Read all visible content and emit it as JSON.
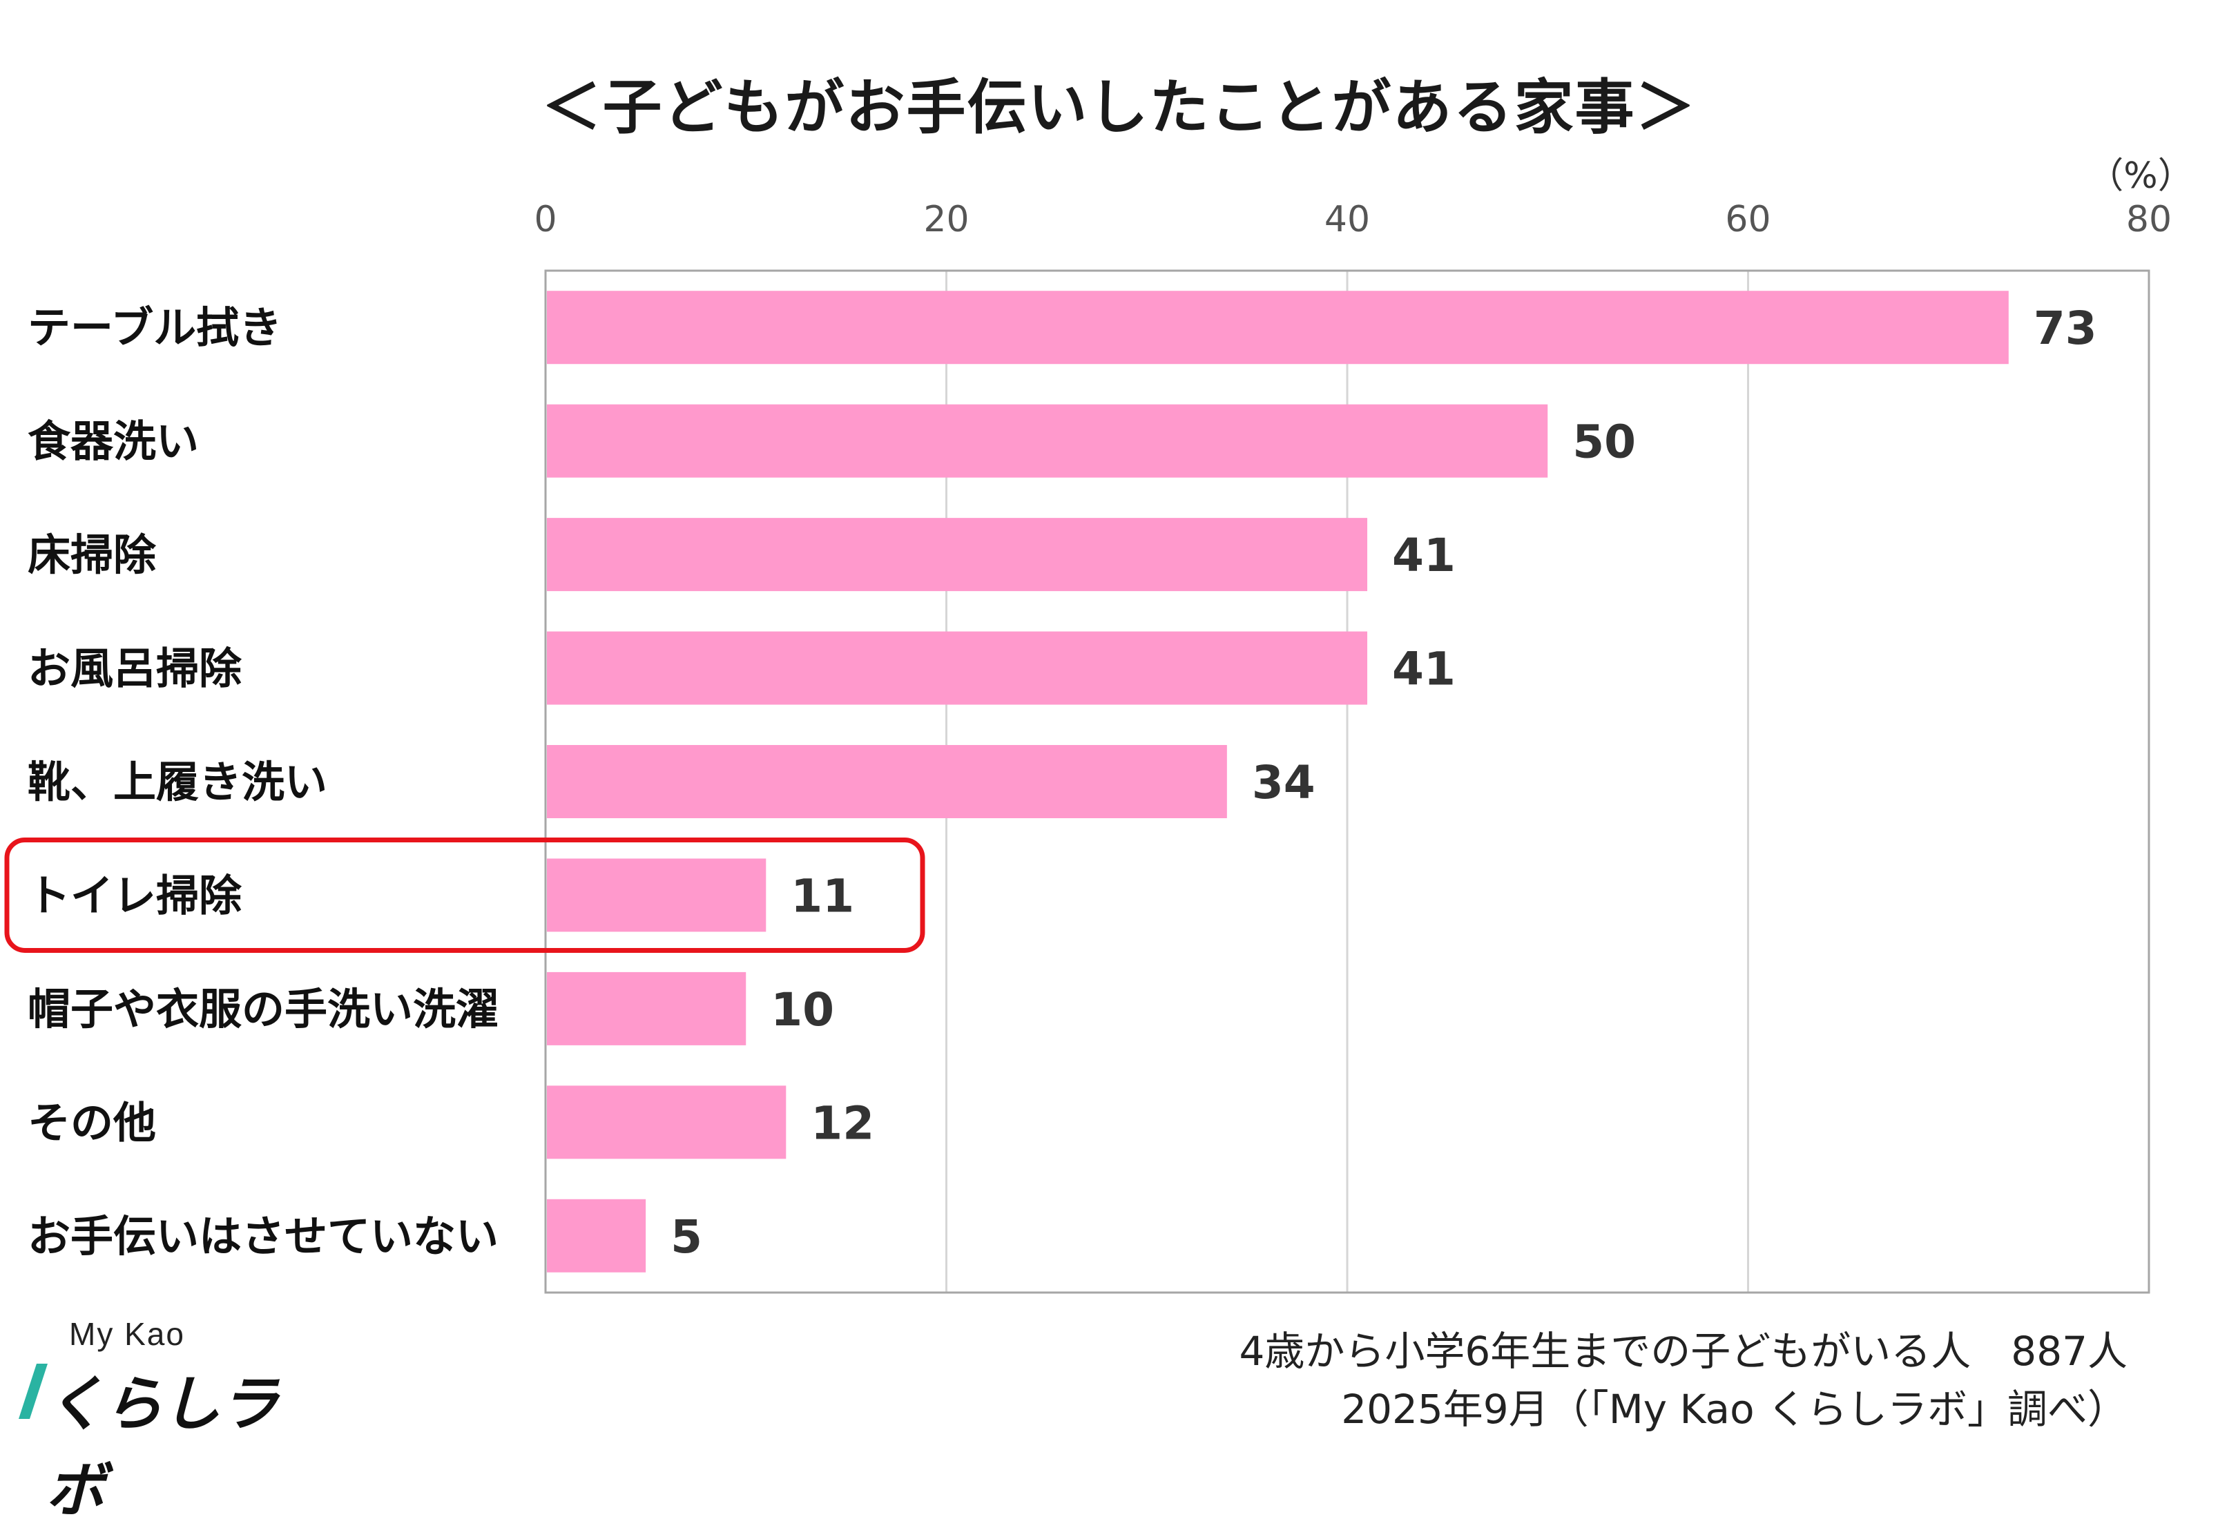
{
  "chart_data": {
    "type": "bar",
    "orientation": "horizontal",
    "title": "＜子どもがお手伝いしたことがある家事＞",
    "unit": "（%）",
    "xlim": [
      0,
      80
    ],
    "ticks": [
      "0",
      "20",
      "40",
      "60",
      "80"
    ],
    "grid": true,
    "categories": [
      "テーブル拭き",
      "食器洗い",
      "床掃除",
      "お風呂掃除",
      "靴、上履き洗い",
      "トイレ掃除",
      "帽子や衣服の手洗い洗濯",
      "その他",
      "お手伝いはさせていない"
    ],
    "values": [
      73,
      50,
      41,
      41,
      34,
      11,
      10,
      12,
      5
    ],
    "highlighted_category": "トイレ掃除",
    "bar_color": "#ff99cc",
    "highlight_color": "#e8141b"
  },
  "footer": {
    "line1": "4歳から小学6年生までの子どもがいる人　887人",
    "line2": "2025年9月（「My Kao くらしラボ」調べ）"
  },
  "logo": {
    "top": "My Kao",
    "main": "くらしラボ"
  }
}
